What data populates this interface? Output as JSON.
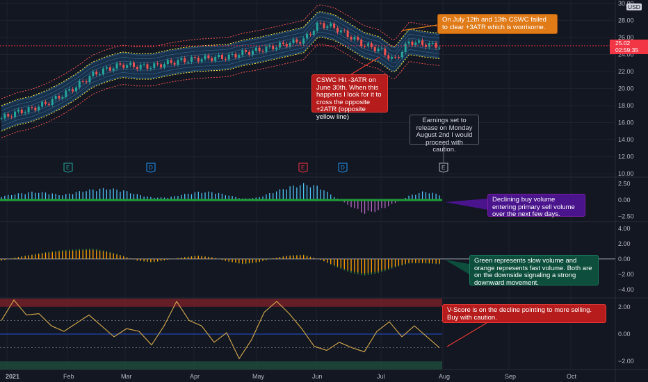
{
  "chart_data": [
    {
      "type": "candlestick",
      "title": "",
      "currency": "USD",
      "last_price": "25.02",
      "countdown": "02:59:35",
      "ylim": [
        9.6,
        30.4
      ],
      "y_ticks": [
        "30.00",
        "28.00",
        "26.00",
        "24.00",
        "22.00",
        "20.00",
        "18.00",
        "16.00",
        "14.00",
        "12.00",
        "10.00"
      ],
      "x_ticks": [
        "2021",
        "Feb",
        "Mar",
        "Apr",
        "May",
        "Jun",
        "Jul",
        "Aug",
        "Sep",
        "Oct"
      ],
      "close_by_week": [
        16.5,
        17.2,
        17.6,
        18.3,
        19.2,
        20.3,
        21.6,
        22.3,
        22.8,
        22.6,
        22.6,
        23.0,
        23.3,
        23.5,
        23.6,
        23.7,
        24.2,
        24.5,
        24.9,
        25.3,
        25.7,
        27.6,
        27.2,
        26.2,
        25.1,
        24.6,
        23.3,
        25.5,
        25.2,
        25.0
      ],
      "bands": [
        "+3ATR",
        "+2ATR",
        "-2ATR",
        "-3ATR"
      ],
      "event_markers": [
        {
          "label": "E",
          "kind": "earnings"
        },
        {
          "label": "D",
          "kind": "dividend"
        },
        {
          "label": "E",
          "kind": "earnings-negative"
        },
        {
          "label": "D",
          "kind": "dividend"
        },
        {
          "label": "E",
          "kind": "earnings-upcoming"
        }
      ]
    },
    {
      "type": "histogram",
      "ylim": [
        -3.2,
        3.4
      ],
      "y_ticks": [
        "2.50",
        "0.00",
        "−2.50"
      ],
      "values": [
        0.6,
        1.0,
        1.3,
        1.2,
        0.8,
        1.3,
        1.7,
        1.9,
        1.6,
        0.9,
        0.4,
        0.4,
        0.9,
        1.3,
        1.3,
        0.8,
        0.2,
        0.4,
        1.3,
        2.1,
        2.6,
        2.2,
        0.6,
        -0.9,
        -2.2,
        -1.7,
        -0.6,
        0.7,
        1.4,
        0.9
      ]
    },
    {
      "type": "histogram",
      "series": [
        {
          "name": "slow"
        },
        {
          "name": "fast"
        }
      ],
      "ylim": [
        -5,
        4.8
      ],
      "y_ticks": [
        "4.00",
        "2.00",
        "0.00",
        "−2.00",
        "−4.00"
      ],
      "values": [
        -0.2,
        0.2,
        0.5,
        0.8,
        1.0,
        1.1,
        1.2,
        0.9,
        0.4,
        -0.2,
        -0.4,
        -0.1,
        0.2,
        0.4,
        0.2,
        -0.3,
        -0.6,
        -0.4,
        0.1,
        0.4,
        0.5,
        0.0,
        -0.8,
        -1.5,
        -1.9,
        -1.6,
        -1.0,
        -0.5,
        -0.5,
        -0.6
      ]
    },
    {
      "type": "line",
      "ylim": [
        -2.6,
        2.6
      ],
      "y_ticks": [
        "2.00",
        "0.00",
        "−2.00"
      ],
      "values": [
        1.0,
        2.5,
        1.4,
        1.5,
        0.6,
        0.2,
        0.8,
        1.4,
        0.6,
        -0.2,
        0.4,
        0.2,
        -0.8,
        0.6,
        2.4,
        1.0,
        0.6,
        -0.6,
        0.1,
        -1.8,
        -0.4,
        1.6,
        2.4,
        1.5,
        0.4,
        -0.9,
        -1.2,
        -0.6,
        -1.0,
        -1.3,
        0.2,
        0.9,
        -0.2,
        0.6,
        -0.2,
        -1.0
      ]
    }
  ],
  "annotations": {
    "c1": "On July 12th and 13th CSWC failed to clear +3ATR which is worrisome.",
    "c2": "CSWC Hit -3ATR on June 30th. When this happens I look for it to cross the opposite +2ATR (opposite yellow line)",
    "c3": "Earnings set to release on Monday August 2nd I would proceed with caution.",
    "c4": "Declining buy volume entering primary sell volume over the next few days.",
    "c5": "Green represents slow volume and orange represents fast volume. Both are on the downside signaling a strong downward movement.",
    "c6": "V-Score is on the decline pointing to more selling. Buy with caution."
  },
  "colors": {
    "bg": "#131722",
    "grid": "#1e222d",
    "up": "#26a69a",
    "down": "#ef5350",
    "band_red": "#ef5350",
    "band_yellow": "#ffeb3b",
    "band_fill": "#1e4e79",
    "hist_blue": "#4fc3f7",
    "hist_green": "#2e7d32",
    "hist_purple": "#ba68c8",
    "slow_green": "#388e3c",
    "fast_orange": "#ff9800",
    "vscore": "#c9a24a"
  }
}
